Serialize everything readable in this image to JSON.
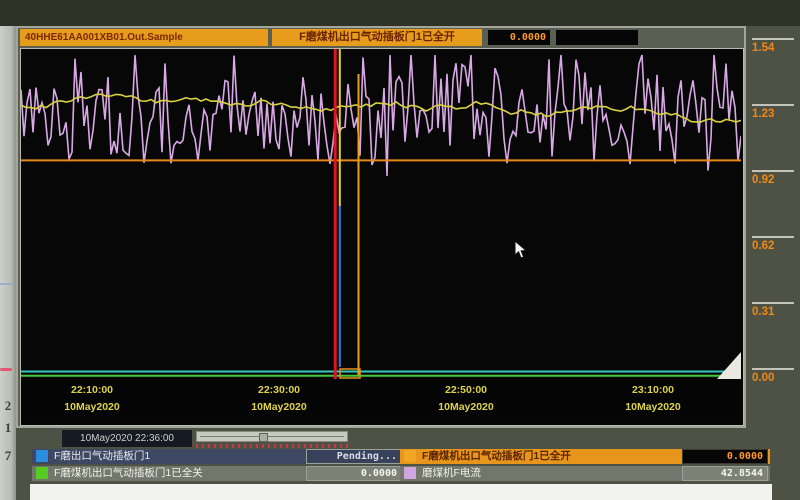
{
  "window": {
    "tag_label": "40HHE61AA001XB01.Out.Sample",
    "header": {
      "signal_label": "F磨煤机出口气动插板门1已全开",
      "signal_value": "0.0000",
      "aux_value": ""
    }
  },
  "y_axis": {
    "labels": [
      "1.54",
      "1.23",
      "0.92",
      "0.62",
      "0.31",
      "0.00"
    ],
    "color": "#f08818"
  },
  "x_axis": {
    "ticks": [
      {
        "time": "22:10:00",
        "date": "10May2020"
      },
      {
        "time": "22:30:00",
        "date": "10May2020"
      },
      {
        "time": "22:50:00",
        "date": "10May2020"
      },
      {
        "time": "23:10:00",
        "date": "10May2020"
      }
    ],
    "color": "#ddd34a"
  },
  "controls": {
    "cursor_datetime": "10May2020  22:36:00"
  },
  "legend": {
    "left": [
      {
        "name": "F磨出口气动插板门1",
        "value": "Pending...",
        "chip_color": "#2b8de0"
      },
      {
        "name": "F磨煤机出口气动插板门1已全关",
        "value": "0.0000",
        "chip_color": "#55cc22"
      }
    ],
    "right": [
      {
        "name": "F磨煤机出口气动插板门1已全开",
        "value": "0.0000",
        "chip_color": "#f0a525",
        "selected": true
      },
      {
        "name": "磨煤机F电流",
        "value": "42.8544",
        "chip_color": "#cfa6dd"
      }
    ]
  },
  "paper_edge": {
    "numbers": [
      "2",
      "1",
      "7"
    ]
  },
  "chart_data": {
    "type": "line",
    "title": "40HHE61AA001XB01.Out.Sample trend",
    "x_ticks": [
      "22:10:00",
      "22:30:00",
      "22:50:00",
      "23:10:00"
    ],
    "x_date": "10May2020",
    "ylim": [
      0,
      1.54
    ],
    "y_ticks": [
      1.54,
      1.23,
      0.92,
      0.62,
      0.31,
      0.0
    ],
    "grid": false,
    "legend_position": "bottom",
    "cursor_time": "22:36:00",
    "series": [
      {
        "name": "磨煤机F电流",
        "color": "#d9a9e6",
        "style": "noisy",
        "approx_mean": 1.25,
        "approx_range": [
          0.98,
          1.52
        ]
      },
      {
        "name": "40HHE61AA001XB01.Out.Sample",
        "color": "#d8d23e",
        "style": "wander",
        "approx_mean": 1.27,
        "approx_range": [
          1.2,
          1.34
        ]
      },
      {
        "name": "F磨煤机出口气动插板门1已全开",
        "color": "#e8881a",
        "style": "constant",
        "value": 1.02
      },
      {
        "name": "F磨出口气动插板门1",
        "color": "#35c8c0",
        "style": "constant",
        "value": 0.035
      },
      {
        "name": "F磨煤机出口气动插板门1已全关",
        "color": "#45c93a",
        "style": "constant",
        "value": 0.015
      }
    ],
    "vertical_markers": [
      {
        "color": "#e8a01c",
        "time": "22:38:30",
        "span": "mid"
      },
      {
        "color": "#e01425",
        "time": "22:36:00",
        "span": "full"
      },
      {
        "color": "#e8d020",
        "time": "22:36:30",
        "span": "top"
      },
      {
        "color": "#2f7ce0",
        "time": "22:36:30",
        "span": "bottom"
      }
    ]
  }
}
